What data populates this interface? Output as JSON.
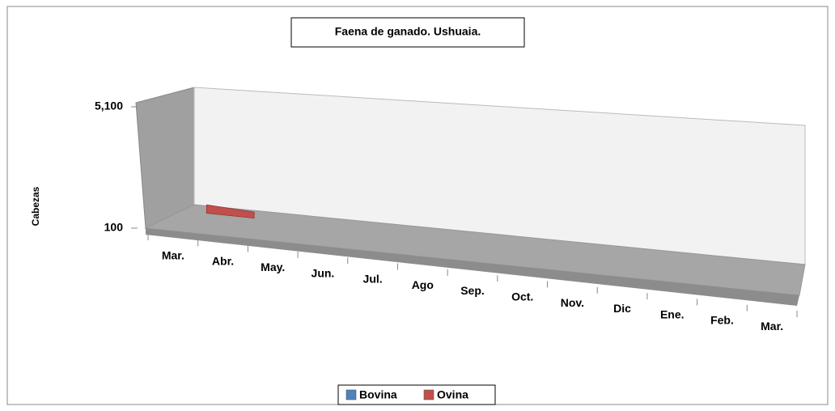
{
  "chart_data": {
    "type": "area3d",
    "title": "Faena de ganado. Ushuaia.",
    "y_label": "Cabezas",
    "categories": [
      "Mar.",
      "Abr.",
      "May.",
      "Jun.",
      "Jul.",
      "Ago",
      "Sep.",
      "Oct.",
      "Nov.",
      "Dic",
      "Ene.",
      "Feb.",
      "Mar."
    ],
    "series": [
      {
        "name": "Bovina",
        "color": "#4f81bd",
        "values": [
          null,
          null,
          null,
          null,
          null,
          null,
          null,
          null,
          null,
          null,
          null,
          null,
          null
        ]
      },
      {
        "name": "Ovina",
        "color": "#c0504d",
        "values": [
          450,
          350,
          null,
          null,
          null,
          null,
          null,
          null,
          null,
          null,
          null,
          null,
          null
        ]
      }
    ],
    "ylim": [
      100,
      5100
    ],
    "yticks": [
      100,
      {
        "value": 5100,
        "label": "5,100"
      }
    ],
    "legend": "bottom"
  }
}
